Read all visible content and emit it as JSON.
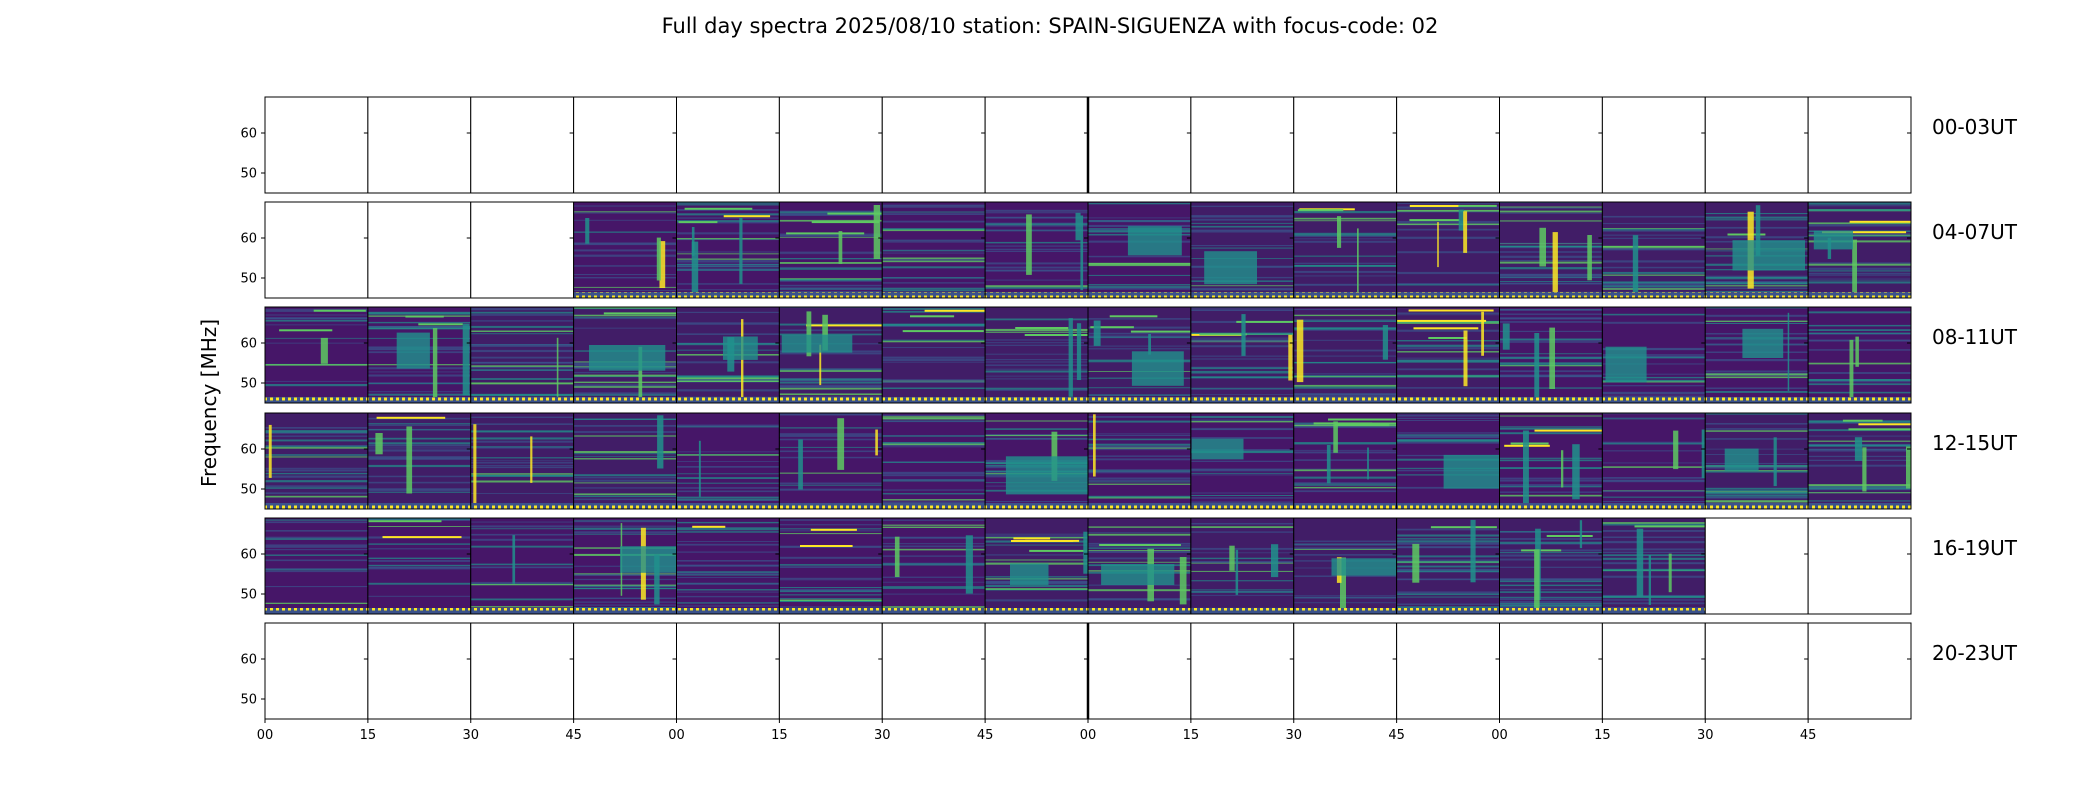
{
  "chart_data": {
    "type": "heatmap",
    "title": "Full day spectra 2025/08/10 station: SPAIN-SIGUENZA with focus-code: 02",
    "ylabel": "Frequency [MHz]",
    "ylim": [
      45,
      69
    ],
    "yticks": [
      50,
      60
    ],
    "x_tick_labels": [
      "00",
      "15",
      "30",
      "45",
      "00",
      "15",
      "30",
      "45",
      "00",
      "15",
      "30",
      "45",
      "00",
      "15",
      "30",
      "45"
    ],
    "minutes_per_panel": 15,
    "panels_per_row": 16,
    "colormap": [
      "#440154",
      "#3b528b",
      "#21918c",
      "#5ec962",
      "#fde725"
    ],
    "rows": [
      {
        "label": "00-03UT",
        "data_panels": []
      },
      {
        "label": "04-07UT",
        "data_panels": [
          3,
          4,
          5,
          6,
          7,
          8,
          9,
          10,
          11,
          12,
          13,
          14,
          15
        ]
      },
      {
        "label": "08-11UT",
        "data_panels": [
          0,
          1,
          2,
          3,
          4,
          5,
          6,
          7,
          8,
          9,
          10,
          11,
          12,
          13,
          14,
          15
        ]
      },
      {
        "label": "12-15UT",
        "data_panels": [
          0,
          1,
          2,
          3,
          4,
          5,
          6,
          7,
          8,
          9,
          10,
          11,
          12,
          13,
          14,
          15
        ]
      },
      {
        "label": "16-19UT",
        "data_panels": [
          0,
          1,
          2,
          3,
          4,
          5,
          6,
          7,
          8,
          9,
          10,
          11,
          12,
          13
        ]
      },
      {
        "label": "20-23UT",
        "data_panels": []
      }
    ]
  }
}
